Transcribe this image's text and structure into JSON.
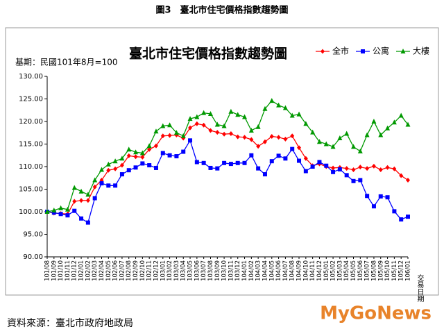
{
  "figure_caption": "圖3　臺北市住宅價格指數趨勢圖",
  "source": "資料來源：臺北市政府地政局",
  "logo": "MyGoNews",
  "chart_data": {
    "type": "line",
    "title": "臺北市住宅價格指數趨勢圖",
    "note": "基期：民國101年8月=100",
    "x_label": "交易日期",
    "categories": [
      "101/08",
      "101/09",
      "101/10",
      "101/11",
      "101/12",
      "102/01",
      "102/02",
      "102/03",
      "102/04",
      "102/05",
      "102/06",
      "102/07",
      "102/08",
      "102/09",
      "102/10",
      "102/11",
      "102/12",
      "103/01",
      "103/02",
      "103/03",
      "103/04",
      "103/05",
      "103/06",
      "103/07",
      "103/08",
      "103/09",
      "103/10",
      "103/11",
      "103/12",
      "104/01",
      "104/02",
      "104/03",
      "104/04",
      "104/05",
      "104/06",
      "104/07",
      "104/08",
      "104/09",
      "104/10",
      "104/11",
      "104/12",
      "105/01",
      "105/02",
      "105/03",
      "105/04",
      "105/05",
      "105/06",
      "105/07",
      "105/08",
      "105/09",
      "105/10",
      "105/11",
      "105/12",
      "106/01"
    ],
    "series": [
      {
        "name": "全市",
        "color": "#ff0000",
        "marker": "diamond",
        "values": [
          100,
          99.7,
          99.6,
          99.5,
          102.3,
          102.5,
          102.5,
          105.5,
          107,
          109.2,
          109.5,
          110.3,
          112.4,
          112.2,
          112.1,
          113.8,
          114.6,
          116.8,
          116.9,
          117,
          116.3,
          118.6,
          119.5,
          119.2,
          118,
          117.6,
          117.2,
          117.3,
          116.6,
          116.5,
          116,
          114.5,
          115.5,
          116.7,
          116.5,
          116.1,
          116.8,
          114.2,
          111.8,
          110.2,
          110.6,
          110,
          109.7,
          109.8,
          109.6,
          109.3,
          109.9,
          109.6,
          110.1,
          109.3,
          109.8,
          109.5,
          108,
          107
        ]
      },
      {
        "name": "公寓",
        "color": "#0000ff",
        "marker": "square",
        "values": [
          100,
          99.8,
          99.5,
          99.2,
          100.2,
          98.5,
          97.6,
          103,
          106.3,
          105.8,
          105.8,
          108.3,
          109.2,
          109.8,
          110.7,
          110.3,
          109.7,
          113,
          112.5,
          112.3,
          113.3,
          115.8,
          111,
          110.8,
          109.7,
          109.6,
          110.8,
          110.6,
          110.8,
          110.8,
          112.5,
          109.6,
          108.3,
          111.2,
          112.4,
          111.8,
          113.9,
          111.3,
          109,
          110,
          111,
          110.2,
          108.8,
          109.4,
          108.1,
          106.8,
          107,
          103.5,
          101.2,
          103.4,
          103.2,
          100.1,
          98.3,
          98.9
        ]
      },
      {
        "name": "大樓",
        "color": "#009900",
        "marker": "triangle",
        "values": [
          100,
          100.3,
          100.8,
          100.5,
          105.3,
          104.5,
          103.8,
          107,
          109.3,
          110.5,
          111.2,
          111.8,
          113.8,
          113.2,
          113,
          114.6,
          117.8,
          119,
          119.2,
          117.5,
          116.8,
          120.6,
          121,
          121.9,
          121.7,
          119.3,
          119,
          122.2,
          121.5,
          121,
          118,
          118.8,
          122.8,
          124.6,
          123.6,
          123,
          121.3,
          121.6,
          119.5,
          117.6,
          115.5,
          115,
          114.4,
          116.3,
          117.3,
          114.4,
          113.4,
          117,
          120,
          117,
          118.5,
          119.8,
          121.3,
          119.3
        ]
      }
    ],
    "ylim": [
      90,
      130
    ],
    "yticks": [
      {
        "value": 90,
        "label": "90.00"
      },
      {
        "value": 95,
        "label": "95.00"
      },
      {
        "value": 100,
        "label": "100.00"
      },
      {
        "value": 105,
        "label": "105.00"
      },
      {
        "value": 110,
        "label": "110.00"
      },
      {
        "value": 115,
        "label": "115.00"
      },
      {
        "value": 120,
        "label": "120.00"
      },
      {
        "value": 125,
        "label": "125.00"
      },
      {
        "value": 130,
        "label": "130.00"
      }
    ],
    "grid": false,
    "legend": "top-right"
  }
}
